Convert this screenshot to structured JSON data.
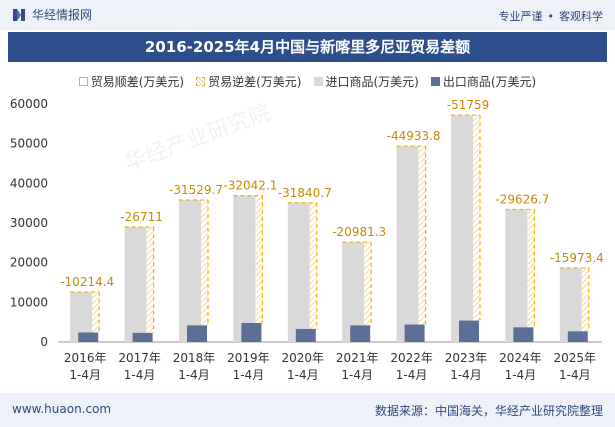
{
  "header": {
    "brand": "华经情报网",
    "slogan_left": "专业严谨",
    "slogan_right": "客观科学",
    "title": "2016-2025年4月中国与新喀里多尼亚贸易差额"
  },
  "legend": {
    "surplus": "贸易顺差(万美元)",
    "deficit": "贸易逆差(万美元)",
    "imports": "进口商品(万美元)",
    "exports": "出口商品(万美元)"
  },
  "watermark": "华经产业研究院",
  "footer": {
    "site": "www.huaon.com",
    "source": "数据来源：中国海关，华经产业研究院整理"
  },
  "colors": {
    "import": "#d9d9d9",
    "export": "#5b6f99",
    "deficit_line": "#f5b300",
    "title_bg": "#2c4f8c"
  },
  "chart_data": {
    "type": "bar",
    "title": "2016-2025年4月中国与新喀里多尼亚贸易差额",
    "categories": [
      [
        "2016年",
        "1-4月"
      ],
      [
        "2017年",
        "1-4月"
      ],
      [
        "2018年",
        "1-4月"
      ],
      [
        "2019年",
        "1-4月"
      ],
      [
        "2020年",
        "1-4月"
      ],
      [
        "2021年",
        "1-4月"
      ],
      [
        "2022年",
        "1-4月"
      ],
      [
        "2023年",
        "1-4月"
      ],
      [
        "2024年",
        "1-4月"
      ],
      [
        "2025年",
        "1-4月"
      ]
    ],
    "series": [
      {
        "name": "进口商品(万美元)",
        "values": [
          12600,
          29000,
          35800,
          36900,
          35100,
          25200,
          49400,
          57200,
          33400,
          18700
        ]
      },
      {
        "name": "出口商品(万美元)",
        "values": [
          2400,
          2300,
          4200,
          4800,
          3300,
          4200,
          4400,
          5400,
          3700,
          2700
        ]
      },
      {
        "name": "贸易逆差(万美元)",
        "values": [
          -10214.4,
          -26711,
          -31529.7,
          -32042.1,
          -31840.7,
          -20981.3,
          -44933.8,
          -51759,
          -29626.7,
          -15973.4
        ]
      }
    ],
    "data_labels": [
      "-10214.4",
      "-26711",
      "-31529.7",
      "-32042.1",
      "-31840.7",
      "-20981.3",
      "-44933.8",
      "-51759",
      "-29626.7",
      "-15973.4"
    ],
    "ylim": [
      0,
      60000
    ],
    "yticks": [
      0,
      10000,
      20000,
      30000,
      40000,
      50000,
      60000
    ],
    "xlabel": "",
    "ylabel": ""
  }
}
